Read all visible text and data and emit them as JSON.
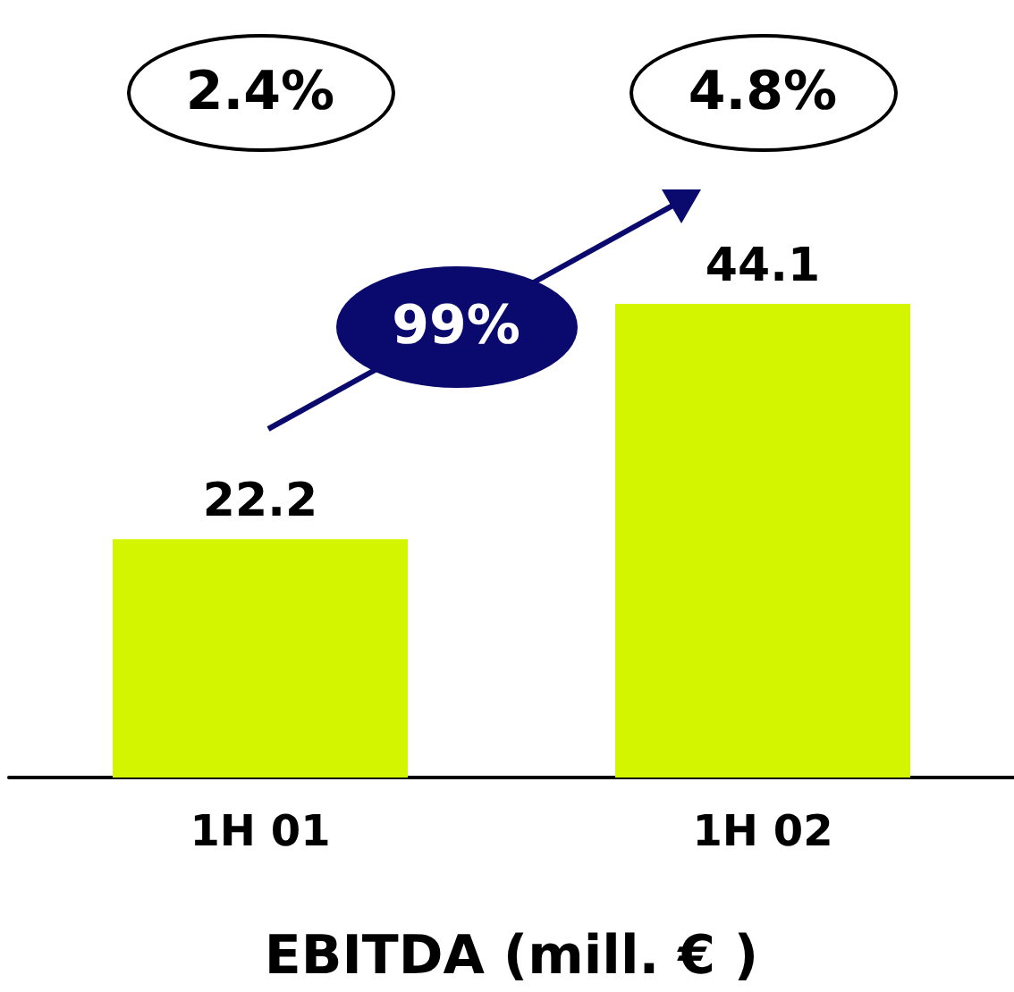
{
  "chart_data": {
    "type": "bar",
    "xlabel": "EBITDA (mill. € )",
    "categories": [
      "1H 01",
      "1H 02"
    ],
    "values": [
      22.2,
      44.1
    ],
    "color": "#d4f500",
    "data_labels": true,
    "annotations": [
      "2.4%",
      "4.8%",
      "99%"
    ]
  }
}
